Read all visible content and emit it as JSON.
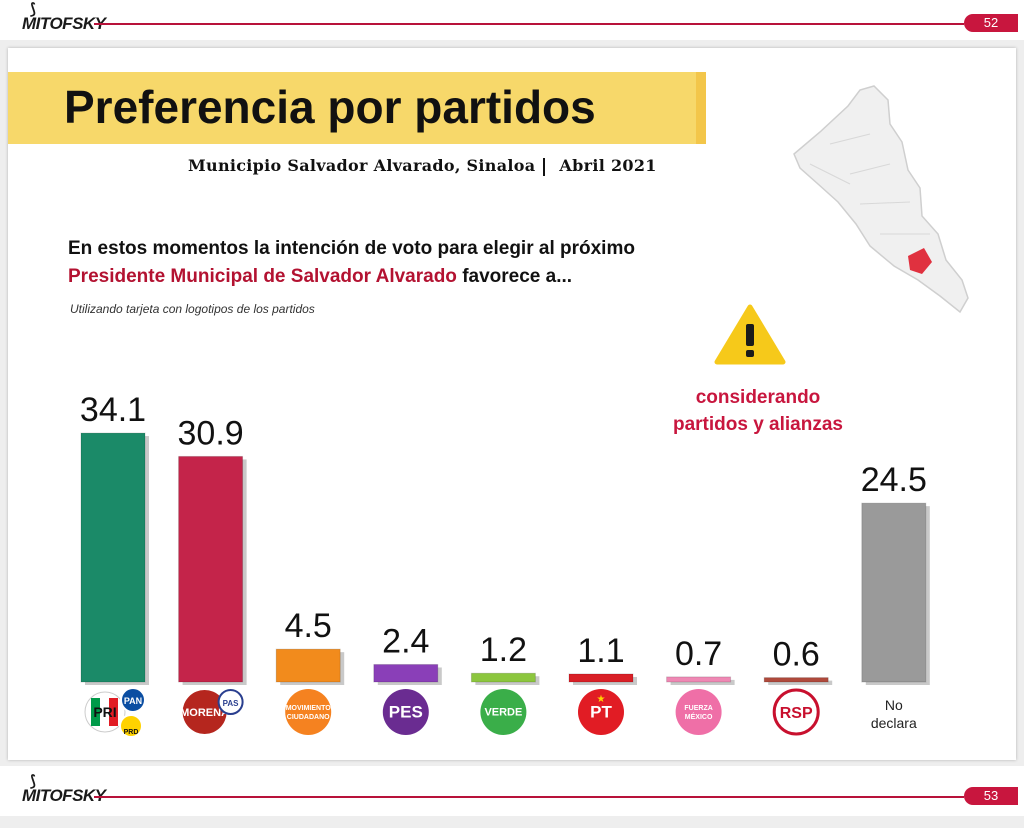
{
  "header": {
    "brand": "MITOFSKY",
    "page_number": "52"
  },
  "footer": {
    "brand": "MITOFSKY",
    "page_number": "53"
  },
  "slide": {
    "title": "Preferencia por partidos",
    "subtitle_place": "Municipio Salvador Alvarado, Sinaloa",
    "subtitle_date": "Abril 2021",
    "question_line1": "En estos momentos la intención de voto para elegir al próximo",
    "question_highlight": "Presidente Municipal de Salvador Alvarado",
    "question_rest": " favorece a...",
    "note": "Utilizando tarjeta con logotipos de los partidos",
    "warning_line1": "considerando",
    "warning_line2": "partidos y alianzas",
    "highlight_color": "#b31231"
  },
  "chart_data": {
    "type": "bar",
    "categories": [
      "PRI-PAN-PRD",
      "MORENA-PAS",
      "Movimiento Ciudadano",
      "PES",
      "VERDE",
      "PT",
      "FUERZA MÉXICO",
      "RSP",
      "No declara"
    ],
    "values": [
      34.1,
      30.9,
      4.5,
      2.4,
      1.2,
      1.1,
      0.7,
      0.6,
      24.5
    ],
    "colors": [
      "#1b8a68",
      "#c4244a",
      "#f28b1c",
      "#8a3fb8",
      "#8cc63e",
      "#d91f26",
      "#ef88b4",
      "#b04a3c",
      "#9a9a9a"
    ],
    "logos": [
      {
        "text": "PRI",
        "sub1": "PAN",
        "sub2": "PRD",
        "color": "#009a49"
      },
      {
        "text": "MORENA",
        "sub1": "PAS",
        "color": "#b5261e"
      },
      {
        "text": "MOVIMIENTO CIUDADANO",
        "color": "#f58220"
      },
      {
        "text": "PES",
        "color": "#6a2c91"
      },
      {
        "text": "VERDE",
        "color": "#3aae49"
      },
      {
        "text": "PT",
        "color": "#e11c24"
      },
      {
        "text": "FUERZA MÉXICO",
        "color": "#ef6fa7"
      },
      {
        "text": "RSP",
        "color": "#ffffff"
      },
      {
        "text": "No declara",
        "color": "#ffffff"
      }
    ],
    "no_declara_label": "No declara",
    "title": "",
    "xlabel": "",
    "ylabel": "",
    "ylim": [
      0,
      40
    ]
  }
}
